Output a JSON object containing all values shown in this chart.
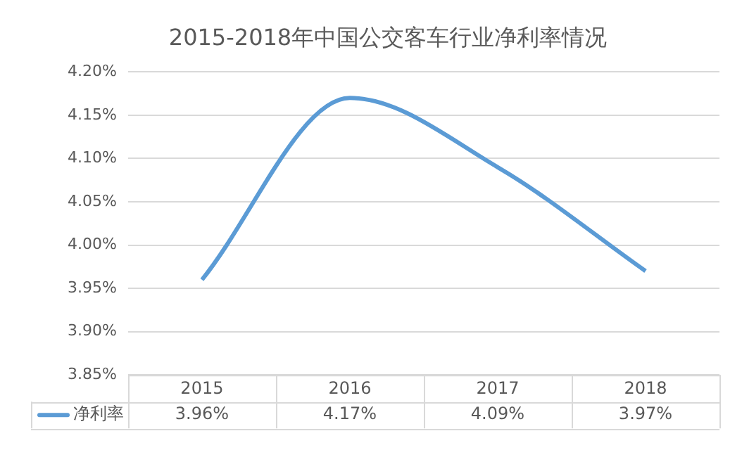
{
  "chart_data": {
    "type": "line",
    "title": "2015-2018年中国公交客车行业净利率情况",
    "categories": [
      "2015",
      "2016",
      "2017",
      "2018"
    ],
    "series": [
      {
        "name": "净利率",
        "color": "#5b9bd5",
        "values": [
          3.96,
          4.17,
          4.09,
          3.97
        ]
      }
    ],
    "ylim": [
      3.85,
      4.2
    ],
    "yticks": [
      {
        "value": 3.85,
        "label": "3.85%"
      },
      {
        "value": 3.9,
        "label": "3.90%"
      },
      {
        "value": 3.95,
        "label": "3.95%"
      },
      {
        "value": 4.0,
        "label": "4.00%"
      },
      {
        "value": 4.05,
        "label": "4.05%"
      },
      {
        "value": 4.1,
        "label": "4.10%"
      },
      {
        "value": 4.15,
        "label": "4.15%"
      },
      {
        "value": 4.2,
        "label": "4.20%"
      }
    ],
    "value_labels": [
      [
        "3.96%",
        "4.17%",
        "4.09%",
        "3.97%"
      ]
    ],
    "grid": "y",
    "legend": "bottom left",
    "marker": "none",
    "line_style": "solid"
  }
}
